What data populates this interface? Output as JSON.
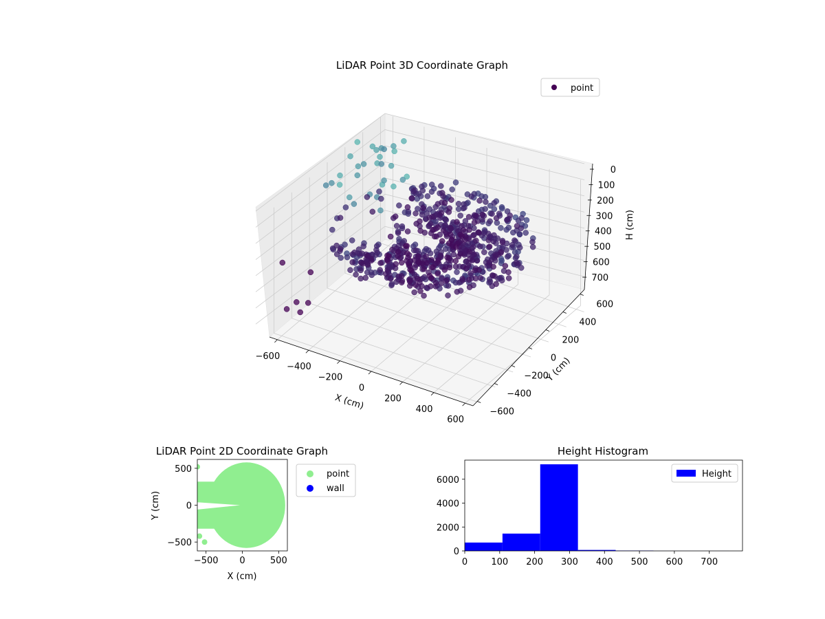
{
  "colors": {
    "point_cmap_dark": "#440154",
    "point_cmap_mid": "#3b528b",
    "point_cmap_light": "#5ec4b6",
    "scatter2d_point": "#90ee90",
    "scatter2d_wall": "#0000ff",
    "hist_bar": "#0000ff",
    "pane_fill": "#f2f2f2",
    "grid": "#cccccc"
  },
  "chart_data": [
    {
      "type": "scatter",
      "title": "LiDAR Point 3D Coordinate Graph",
      "xlabel": "X (cm)",
      "ylabel": "Y (cm)",
      "zlabel": "H (cm)",
      "x_ticks": [
        -600,
        -400,
        -200,
        0,
        200,
        400,
        600
      ],
      "y_ticks": [
        -600,
        -400,
        -200,
        0,
        200,
        400,
        600
      ],
      "z_ticks": [
        0,
        100,
        200,
        300,
        400,
        500,
        600,
        700
      ],
      "xlim": [
        -650,
        650
      ],
      "ylim": [
        -650,
        650
      ],
      "zlim": [
        780,
        0
      ],
      "z_inverted": true,
      "grid": true,
      "legend": {
        "placement": "top-right",
        "entries": [
          "point"
        ]
      },
      "series": [
        {
          "name": "point",
          "colormap": "viridis",
          "shape": "ring of points (radius ~550 cm) open toward -X, height ~250–330 cm, plus sparse outliers"
        }
      ]
    },
    {
      "type": "scatter",
      "title": "LiDAR Point 2D Coordinate Graph",
      "xlabel": "X (cm)",
      "ylabel": "Y (cm)",
      "x_ticks": [
        -500,
        0,
        500
      ],
      "y_ticks": [
        500,
        0,
        -500
      ],
      "xlim": [
        -620,
        620
      ],
      "ylim": [
        -620,
        620
      ],
      "legend": {
        "placement": "right",
        "entries": [
          "point",
          "wall"
        ]
      },
      "series": [
        {
          "name": "point",
          "shape": "filled disc radius ~580 cm with notch toward -X"
        },
        {
          "name": "wall",
          "points": []
        }
      ]
    },
    {
      "type": "bar",
      "title": "Height Histogram",
      "xlabel": "",
      "ylabel": "",
      "x_ticks": [
        0,
        100,
        200,
        300,
        400,
        500,
        600,
        700
      ],
      "y_ticks": [
        0,
        2000,
        4000,
        6000
      ],
      "xlim": [
        0,
        795
      ],
      "ylim": [
        0,
        7600
      ],
      "legend": {
        "placement": "top-right",
        "entries": [
          "Height"
        ]
      },
      "bins": [
        {
          "x0": 0,
          "x1": 108,
          "count": 700
        },
        {
          "x0": 108,
          "x1": 216,
          "count": 1450
        },
        {
          "x0": 216,
          "x1": 324,
          "count": 7250
        },
        {
          "x0": 324,
          "x1": 432,
          "count": 80
        },
        {
          "x0": 432,
          "x1": 540,
          "count": 30
        },
        {
          "x0": 540,
          "x1": 648,
          "count": 5
        },
        {
          "x0": 648,
          "x1": 756,
          "count": 3
        }
      ]
    }
  ]
}
